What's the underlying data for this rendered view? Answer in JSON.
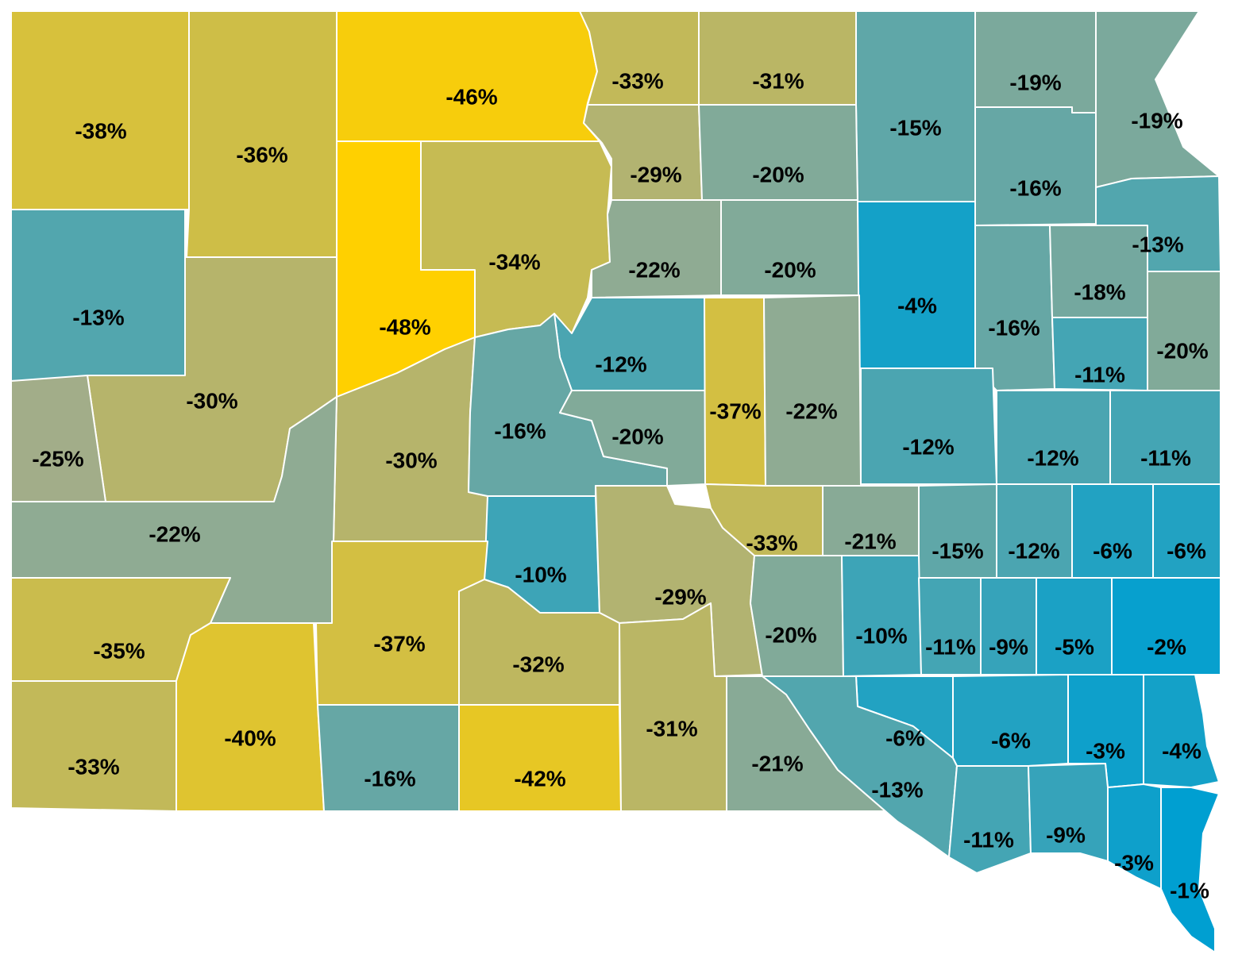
{
  "map": {
    "scale": {
      "min_value": -48,
      "max_value": -1,
      "low_color": "#ffd000",
      "high_color": "#009fd1"
    },
    "counties": [
      {
        "value": -38,
        "label": "-38%"
      },
      {
        "value": -36,
        "label": "-36%"
      },
      {
        "value": -46,
        "label": "-46%"
      },
      {
        "value": -33,
        "label": "-33%"
      },
      {
        "value": -31,
        "label": "-31%"
      },
      {
        "value": -15,
        "label": "-15%"
      },
      {
        "value": -19,
        "label": "-19%"
      },
      {
        "value": -19,
        "label": "-19%"
      },
      {
        "value": -29,
        "label": "-29%"
      },
      {
        "value": -20,
        "label": "-20%"
      },
      {
        "value": -16,
        "label": "-16%"
      },
      {
        "value": -13,
        "label": "-13%"
      },
      {
        "value": -48,
        "label": "-48%"
      },
      {
        "value": -34,
        "label": "-34%"
      },
      {
        "value": -22,
        "label": "-22%"
      },
      {
        "value": -20,
        "label": "-20%"
      },
      {
        "value": -4,
        "label": "-4%"
      },
      {
        "value": -16,
        "label": "-16%"
      },
      {
        "value": -18,
        "label": "-18%"
      },
      {
        "value": -13,
        "label": "-13%"
      },
      {
        "value": -30,
        "label": "-30%"
      },
      {
        "value": -12,
        "label": "-12%"
      },
      {
        "value": -20,
        "label": "-20%"
      },
      {
        "value": -11,
        "label": "-11%"
      },
      {
        "value": -25,
        "label": "-25%"
      },
      {
        "value": -30,
        "label": "-30%"
      },
      {
        "value": -16,
        "label": "-16%"
      },
      {
        "value": -20,
        "label": "-20%"
      },
      {
        "value": -37,
        "label": "-37%"
      },
      {
        "value": -22,
        "label": "-22%"
      },
      {
        "value": -12,
        "label": "-12%"
      },
      {
        "value": -12,
        "label": "-12%"
      },
      {
        "value": -11,
        "label": "-11%"
      },
      {
        "value": -22,
        "label": "-22%"
      },
      {
        "value": -10,
        "label": "-10%"
      },
      {
        "value": -29,
        "label": "-29%"
      },
      {
        "value": -33,
        "label": "-33%"
      },
      {
        "value": -21,
        "label": "-21%"
      },
      {
        "value": -15,
        "label": "-15%"
      },
      {
        "value": -12,
        "label": "-12%"
      },
      {
        "value": -6,
        "label": "-6%"
      },
      {
        "value": -6,
        "label": "-6%"
      },
      {
        "value": -35,
        "label": "-35%"
      },
      {
        "value": -37,
        "label": "-37%"
      },
      {
        "value": -32,
        "label": "-32%"
      },
      {
        "value": -20,
        "label": "-20%"
      },
      {
        "value": -10,
        "label": "-10%"
      },
      {
        "value": -11,
        "label": "-11%"
      },
      {
        "value": -9,
        "label": "-9%"
      },
      {
        "value": -5,
        "label": "-5%"
      },
      {
        "value": -2,
        "label": "-2%"
      },
      {
        "value": -33,
        "label": "-33%"
      },
      {
        "value": -40,
        "label": "-40%"
      },
      {
        "value": -16,
        "label": "-16%"
      },
      {
        "value": -42,
        "label": "-42%"
      },
      {
        "value": -31,
        "label": "-31%"
      },
      {
        "value": -21,
        "label": "-21%"
      },
      {
        "value": -6,
        "label": "-6%"
      },
      {
        "value": -6,
        "label": "-6%"
      },
      {
        "value": -3,
        "label": "-3%"
      },
      {
        "value": -4,
        "label": "-4%"
      },
      {
        "value": -13,
        "label": "-13%"
      },
      {
        "value": -11,
        "label": "-11%"
      },
      {
        "value": -9,
        "label": "-9%"
      },
      {
        "value": -3,
        "label": "-3%"
      },
      {
        "value": -1,
        "label": "-1%"
      }
    ]
  }
}
